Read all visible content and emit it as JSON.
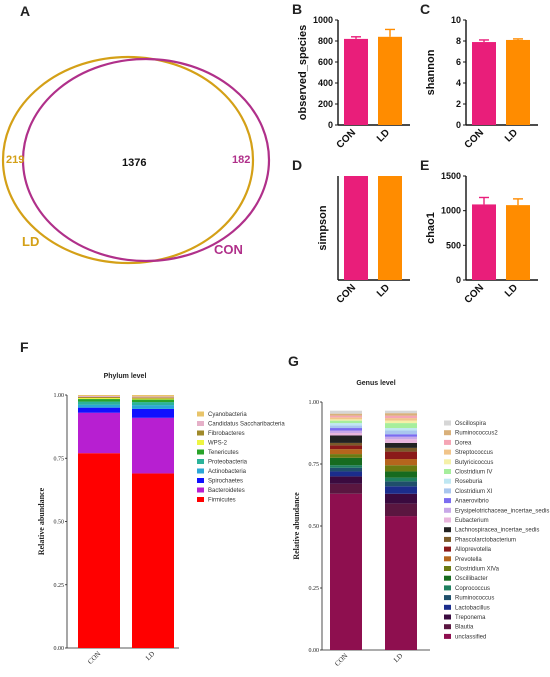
{
  "panels": {
    "A": "A",
    "B": "B",
    "C": "C",
    "D": "D",
    "E": "E",
    "F": "F",
    "G": "G"
  },
  "colors": {
    "con": "#e91e7a",
    "ld": "#ff8c00",
    "ld_circle": "#d4a017",
    "con_circle": "#b0308a"
  },
  "venn": {
    "ld_only": "219",
    "shared": "1376",
    "con_only": "182",
    "ld_label": "LD",
    "con_label": "CON"
  },
  "alpha": [
    {
      "key": "B",
      "ylabel": "observed_species",
      "ymax": 1000,
      "ticks": [
        0,
        200,
        400,
        600,
        800,
        1000
      ],
      "categories": [
        "CON",
        "LD"
      ],
      "values": [
        820,
        840
      ],
      "errors": [
        20,
        70
      ]
    },
    {
      "key": "C",
      "ylabel": "shannon",
      "ymax": 10,
      "ticks": [
        0,
        2,
        4,
        6,
        8,
        10
      ],
      "categories": [
        "CON",
        "LD"
      ],
      "values": [
        7.9,
        8.1
      ],
      "errors": [
        0.2,
        0.1
      ]
    },
    {
      "key": "D",
      "ylabel": "simpson",
      "ymax": 1,
      "ticks": [],
      "categories": [
        "CON",
        "LD"
      ],
      "values": [
        1.0,
        1.0
      ],
      "errors": [
        0,
        0
      ]
    },
    {
      "key": "E",
      "ylabel": "chao1",
      "ymax": 1500,
      "ticks": [
        0,
        500,
        1000,
        1500
      ],
      "categories": [
        "CON",
        "LD"
      ],
      "values": [
        1090,
        1080
      ],
      "errors": [
        100,
        90
      ]
    }
  ],
  "chart_data": [
    {
      "type": "bar",
      "title": "Phylum level",
      "ylabel": "Relative abundance",
      "ylim": [
        0,
        1
      ],
      "yticks": [
        "0.00",
        "0.25",
        "0.50",
        "0.75",
        "1.00"
      ],
      "categories": [
        "CON",
        "LD"
      ],
      "series": [
        {
          "name": "Firmicutes",
          "color": "#ff0000",
          "values": [
            0.77,
            0.69
          ]
        },
        {
          "name": "Bacteroidetes",
          "color": "#b71fd1",
          "values": [
            0.16,
            0.22
          ]
        },
        {
          "name": "Spirochaetes",
          "color": "#1010ff",
          "values": [
            0.02,
            0.035
          ]
        },
        {
          "name": "Actinobacteria",
          "color": "#2aa7d6",
          "values": [
            0.012,
            0.015
          ]
        },
        {
          "name": "Proteobacteria",
          "color": "#2bb39a",
          "values": [
            0.012,
            0.012
          ]
        },
        {
          "name": "Tenericutes",
          "color": "#29a329",
          "values": [
            0.01,
            0.01
          ]
        },
        {
          "name": "WPS-2",
          "color": "#eef542",
          "values": [
            0.004,
            0.004
          ]
        },
        {
          "name": "Fibrobacteres",
          "color": "#a08a2a",
          "values": [
            0.004,
            0.004
          ]
        },
        {
          "name": "Candidatus Saccharibacteria",
          "color": "#e5b0c8",
          "values": [
            0.004,
            0.004
          ]
        },
        {
          "name": "Cyanobacteria",
          "color": "#e8c46a",
          "values": [
            0.004,
            0.006
          ]
        }
      ]
    },
    {
      "type": "bar",
      "title": "Genus level",
      "ylabel": "Relative abundance",
      "ylim": [
        0,
        1
      ],
      "yticks": [
        "0.00",
        "0.25",
        "0.50",
        "0.75",
        "1.00"
      ],
      "categories": [
        "CON",
        "LD"
      ],
      "series": [
        {
          "name": "unclassified",
          "color": "#8e0f4f",
          "values": [
            0.63,
            0.54
          ]
        },
        {
          "name": "Blautia",
          "color": "#5a1640",
          "values": [
            0.04,
            0.05
          ]
        },
        {
          "name": "Treponema",
          "color": "#3a0a3f",
          "values": [
            0.03,
            0.04
          ]
        },
        {
          "name": "Lactobacillus",
          "color": "#1b2d8c",
          "values": [
            0.02,
            0.03
          ]
        },
        {
          "name": "Ruminococcus",
          "color": "#1f4f6b",
          "values": [
            0.015,
            0.02
          ]
        },
        {
          "name": "Coprococcus",
          "color": "#1f7f5f",
          "values": [
            0.01,
            0.015
          ]
        },
        {
          "name": "Oscillibacter",
          "color": "#176b1f",
          "values": [
            0.03,
            0.025
          ]
        },
        {
          "name": "Clostridium XlVa",
          "color": "#6b7a12",
          "values": [
            0.015,
            0.025
          ]
        },
        {
          "name": "Prevotella",
          "color": "#b5651d",
          "values": [
            0.02,
            0.025
          ]
        },
        {
          "name": "Alloprevotella",
          "color": "#8b1a1a",
          "values": [
            0.015,
            0.03
          ]
        },
        {
          "name": "Phascolarctobacterium",
          "color": "#7a5a2a",
          "values": [
            0.01,
            0.015
          ]
        },
        {
          "name": "Lachnospiracea_incertae_sedis",
          "color": "#222222",
          "values": [
            0.03,
            0.02
          ]
        },
        {
          "name": "Eubacterium",
          "color": "#e9b6dd",
          "values": [
            0.01,
            0.015
          ]
        },
        {
          "name": "Erysipelotrichaceae_incertae_sedis",
          "color": "#c8a8e8",
          "values": [
            0.01,
            0.01
          ]
        },
        {
          "name": "Anaerovibrio",
          "color": "#7b6cf0",
          "values": [
            0.01,
            0.01
          ]
        },
        {
          "name": "Clostridium XI",
          "color": "#a9c6ee",
          "values": [
            0.01,
            0.015
          ]
        },
        {
          "name": "Roseburia",
          "color": "#bfe7f2",
          "values": [
            0.01,
            0.01
          ]
        },
        {
          "name": "Clostridium IV",
          "color": "#a6ee9c",
          "values": [
            0.01,
            0.02
          ]
        },
        {
          "name": "Butyricicoccus",
          "color": "#f5f0a8",
          "values": [
            0.005,
            0.01
          ]
        },
        {
          "name": "Streptococcus",
          "color": "#f1c48a",
          "values": [
            0.008,
            0.01
          ]
        },
        {
          "name": "Dorea",
          "color": "#f5a5b5",
          "values": [
            0.007,
            0.01
          ]
        },
        {
          "name": "Ruminococcus2",
          "color": "#d9b07a",
          "values": [
            0.008,
            0.01
          ]
        },
        {
          "name": "Oscillospira",
          "color": "#d6d6d6",
          "values": [
            0.012,
            0.01
          ]
        }
      ]
    }
  ]
}
